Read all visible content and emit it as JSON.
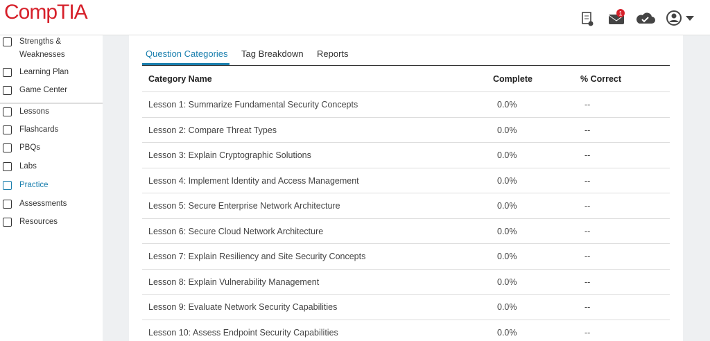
{
  "header": {
    "logo": "CompTIA",
    "notification_count": 1
  },
  "sidebar": {
    "items": [
      "Strengths & Weaknesses",
      "Learning Plan",
      "Game Center",
      "Lessons",
      "Flashcards",
      "PBQs",
      "Labs",
      "Practice",
      "Assessments",
      "Resources"
    ]
  },
  "tabs": [
    "Question Categories",
    "Tag Breakdown",
    "Reports"
  ],
  "table": {
    "columns": [
      "Category Name",
      "Complete",
      "% Correct"
    ],
    "rows": [
      [
        "Lesson 1: Summarize Fundamental Security Concepts",
        "0.0%",
        "--"
      ],
      [
        "Lesson 2: Compare Threat Types",
        "0.0%",
        "--"
      ],
      [
        "Lesson 3: Explain Cryptographic Solutions",
        "0.0%",
        "--"
      ],
      [
        "Lesson 4: Implement Identity and Access Management",
        "0.0%",
        "--"
      ],
      [
        "Lesson 5: Secure Enterprise Network Architecture",
        "0.0%",
        "--"
      ],
      [
        "Lesson 6: Secure Cloud Network Architecture",
        "0.0%",
        "--"
      ],
      [
        "Lesson 7: Explain Resiliency and Site Security Concepts",
        "0.0%",
        "--"
      ],
      [
        "Lesson 8: Explain Vulnerability Management",
        "0.0%",
        "--"
      ],
      [
        "Lesson 9: Evaluate Network Security Capabilities",
        "0.0%",
        "--"
      ],
      [
        "Lesson 10: Assess Endpoint Security Capabilities",
        "0.0%",
        "--"
      ]
    ]
  }
}
